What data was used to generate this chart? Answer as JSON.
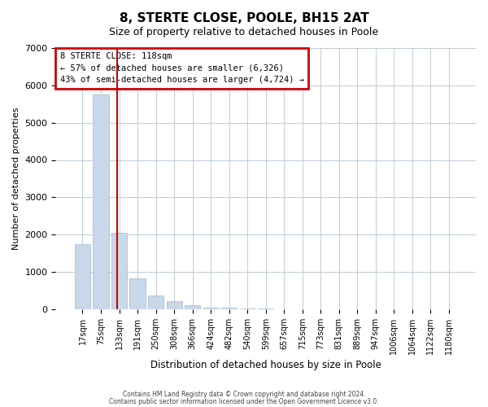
{
  "title": "8, STERTE CLOSE, POOLE, BH15 2AT",
  "subtitle": "Size of property relative to detached houses in Poole",
  "xlabel": "Distribution of detached houses by size in Poole",
  "ylabel": "Number of detached properties",
  "bar_labels": [
    "17sqm",
    "75sqm",
    "133sqm",
    "191sqm",
    "250sqm",
    "308sqm",
    "366sqm",
    "424sqm",
    "482sqm",
    "540sqm",
    "599sqm",
    "657sqm",
    "715sqm",
    "773sqm",
    "831sqm",
    "889sqm",
    "947sqm",
    "1006sqm",
    "1064sqm",
    "1122sqm",
    "1180sqm"
  ],
  "bar_values": [
    1750,
    5750,
    2050,
    820,
    360,
    220,
    100,
    50,
    40,
    15,
    8,
    4,
    2,
    1,
    1,
    0,
    0,
    0,
    0,
    0,
    0
  ],
  "bar_color": "#c8d8e8",
  "bar_edge_color": "#a0b8cc",
  "red_line_x": 1.9,
  "red_line_color": "#cc0000",
  "ylim": [
    0,
    7000
  ],
  "annotation_title": "8 STERTE CLOSE: 118sqm",
  "annotation_line1": "← 57% of detached houses are smaller (6,326)",
  "annotation_line2": "43% of semi-detached houses are larger (4,724) →",
  "annotation_box_color": "#cc0000",
  "footer_line1": "Contains HM Land Registry data © Crown copyright and database right 2024.",
  "footer_line2": "Contains public sector information licensed under the Open Government Licence v3.0.",
  "background_color": "#ffffff",
  "grid_color": "#c0ccd8"
}
